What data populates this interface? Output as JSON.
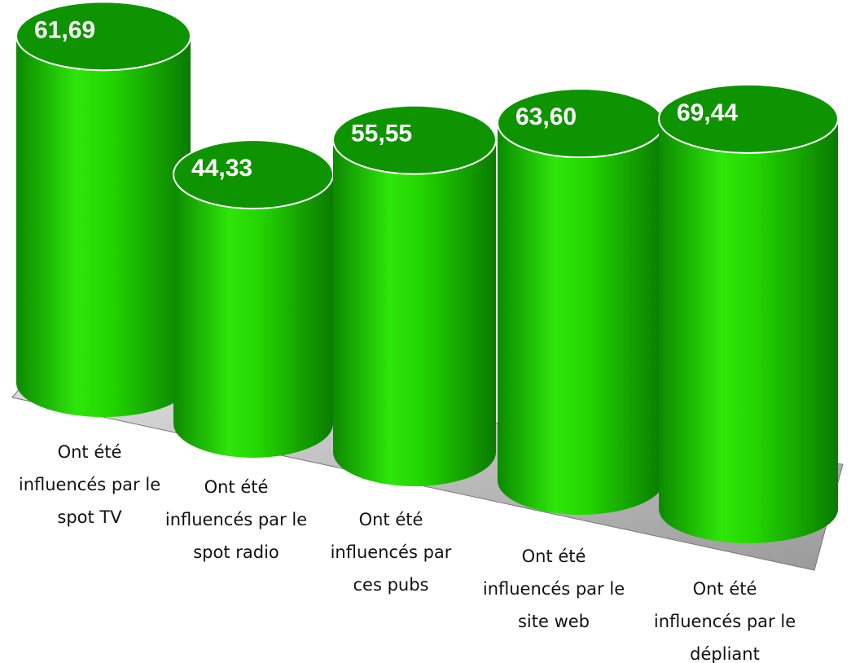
{
  "chart_data": {
    "type": "cylinder",
    "categories": [
      "Ont été influencés par le spot TV",
      "Ont été influencés par le spot radio",
      "Ont été influencés par ces pubs",
      "Ont été influencés par le site web",
      "Ont été influencés par le dépliant"
    ],
    "values": [
      61.69,
      44.33,
      55.55,
      63.6,
      69.44
    ],
    "value_labels": [
      "61,69",
      "44,33",
      "55,55",
      "63,60",
      "69,44"
    ],
    "color": "#22cc00"
  }
}
